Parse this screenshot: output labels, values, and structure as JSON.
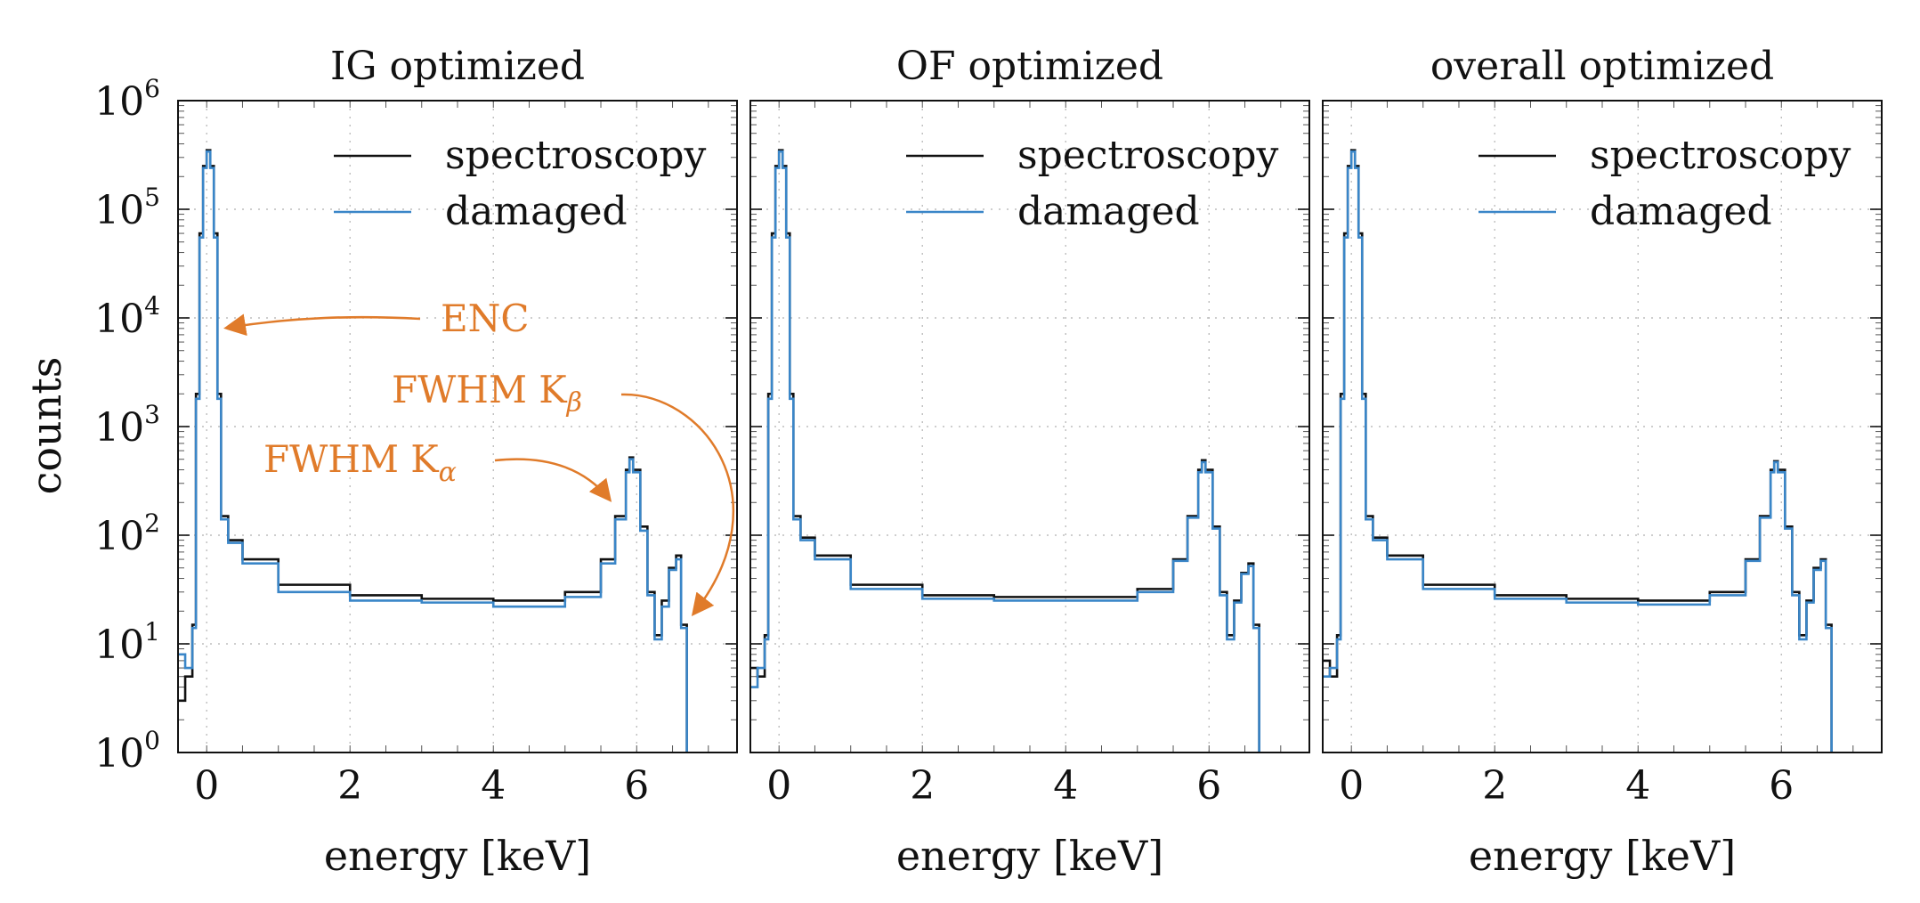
{
  "figure": {
    "ylabel": "counts"
  },
  "colors": {
    "spectroscopy": "#111111",
    "damaged": "#3a86c8",
    "annotation": "#e07b2a",
    "grid": "#bdbdbd"
  },
  "chart_data": [
    {
      "type": "line",
      "title": "IG optimized",
      "xlabel": "energy [keV]",
      "ylabel": "counts",
      "xlim": [
        -0.4,
        7.4
      ],
      "ylim": [
        1,
        1000000
      ],
      "yscale": "log",
      "grid": true,
      "legend": "top-right",
      "x_ticks": [
        "0",
        "2",
        "4",
        "6"
      ],
      "y_ticks": [
        "10^0",
        "10^1",
        "10^2",
        "10^3",
        "10^4",
        "10^5",
        "10^6"
      ],
      "series": [
        {
          "name": "spectroscopy",
          "x": [
            -0.4,
            -0.3,
            -0.2,
            -0.15,
            -0.1,
            -0.05,
            0,
            0.05,
            0.1,
            0.15,
            0.2,
            0.3,
            0.5,
            1,
            2,
            3,
            4,
            5,
            5.5,
            5.7,
            5.85,
            5.9,
            5.95,
            6.05,
            6.15,
            6.25,
            6.35,
            6.45,
            6.55,
            6.62,
            6.7
          ],
          "y": [
            3,
            5,
            15,
            2000,
            60000,
            250000,
            350000,
            250000,
            60000,
            2000,
            150,
            90,
            60,
            35,
            28,
            26,
            25,
            30,
            60,
            150,
            400,
            520,
            400,
            120,
            30,
            12,
            25,
            50,
            65,
            15,
            1
          ]
        },
        {
          "name": "damaged",
          "x": [
            -0.4,
            -0.3,
            -0.2,
            -0.15,
            -0.1,
            -0.05,
            0,
            0.05,
            0.1,
            0.15,
            0.2,
            0.3,
            0.5,
            1,
            2,
            3,
            4,
            5,
            5.5,
            5.7,
            5.85,
            5.9,
            5.95,
            6.05,
            6.15,
            6.25,
            6.35,
            6.45,
            6.55,
            6.62,
            6.7
          ],
          "y": [
            8,
            6,
            14,
            1800,
            55000,
            240000,
            340000,
            240000,
            55000,
            1800,
            140,
            85,
            55,
            30,
            25,
            24,
            22,
            27,
            55,
            140,
            380,
            500,
            380,
            110,
            28,
            11,
            22,
            48,
            60,
            14,
            1
          ]
        }
      ],
      "annotations": [
        {
          "text": "ENC",
          "target": "peak near 0 keV"
        },
        {
          "text": "FWHM K",
          "subscript": "β",
          "target": "Kβ peak near 6.5 keV"
        },
        {
          "text": "FWHM K",
          "subscript": "α",
          "target": "Kα peak near 5.9 keV"
        }
      ]
    },
    {
      "type": "line",
      "title": "OF optimized",
      "xlabel": "energy [keV]",
      "xlim": [
        -0.4,
        7.4
      ],
      "ylim": [
        1,
        1000000
      ],
      "yscale": "log",
      "grid": true,
      "legend": "top-right",
      "x_ticks": [
        "0",
        "2",
        "4",
        "6"
      ],
      "series": [
        {
          "name": "spectroscopy",
          "x": [
            -0.4,
            -0.3,
            -0.2,
            -0.15,
            -0.1,
            -0.05,
            0,
            0.05,
            0.1,
            0.15,
            0.2,
            0.3,
            0.5,
            1,
            2,
            3,
            4,
            5,
            5.5,
            5.7,
            5.85,
            5.9,
            5.95,
            6.05,
            6.15,
            6.25,
            6.35,
            6.45,
            6.55,
            6.62,
            6.7
          ],
          "y": [
            6,
            5,
            12,
            2000,
            60000,
            250000,
            350000,
            250000,
            60000,
            2000,
            150,
            95,
            65,
            35,
            28,
            27,
            27,
            32,
            60,
            150,
            400,
            490,
            400,
            120,
            30,
            12,
            25,
            45,
            55,
            15,
            1
          ]
        },
        {
          "name": "damaged",
          "x": [
            -0.4,
            -0.3,
            -0.2,
            -0.15,
            -0.1,
            -0.05,
            0,
            0.05,
            0.1,
            0.15,
            0.2,
            0.3,
            0.5,
            1,
            2,
            3,
            4,
            5,
            5.5,
            5.7,
            5.85,
            5.9,
            5.95,
            6.05,
            6.15,
            6.25,
            6.35,
            6.45,
            6.55,
            6.62,
            6.7
          ],
          "y": [
            4,
            6,
            11,
            1800,
            55000,
            240000,
            340000,
            240000,
            55000,
            1800,
            140,
            90,
            60,
            32,
            26,
            25,
            25,
            30,
            58,
            145,
            380,
            470,
            380,
            115,
            28,
            11,
            24,
            44,
            52,
            14,
            1
          ]
        }
      ]
    },
    {
      "type": "line",
      "title": "overall optimized",
      "xlabel": "energy [keV]",
      "xlim": [
        -0.4,
        7.4
      ],
      "ylim": [
        1,
        1000000
      ],
      "yscale": "log",
      "grid": true,
      "legend": "top-right",
      "x_ticks": [
        "0",
        "2",
        "4",
        "6"
      ],
      "series": [
        {
          "name": "spectroscopy",
          "x": [
            -0.4,
            -0.3,
            -0.2,
            -0.15,
            -0.1,
            -0.05,
            0,
            0.05,
            0.1,
            0.15,
            0.2,
            0.3,
            0.5,
            1,
            2,
            3,
            4,
            5,
            5.5,
            5.7,
            5.85,
            5.9,
            5.95,
            6.05,
            6.15,
            6.25,
            6.35,
            6.45,
            6.55,
            6.62,
            6.7
          ],
          "y": [
            7,
            5,
            12,
            2000,
            60000,
            250000,
            350000,
            250000,
            60000,
            2000,
            150,
            95,
            65,
            35,
            28,
            26,
            25,
            30,
            60,
            150,
            400,
            480,
            400,
            120,
            30,
            12,
            25,
            50,
            60,
            15,
            1
          ]
        },
        {
          "name": "damaged",
          "x": [
            -0.4,
            -0.3,
            -0.2,
            -0.15,
            -0.1,
            -0.05,
            0,
            0.05,
            0.1,
            0.15,
            0.2,
            0.3,
            0.5,
            1,
            2,
            3,
            4,
            5,
            5.5,
            5.7,
            5.85,
            5.9,
            5.95,
            6.05,
            6.15,
            6.25,
            6.35,
            6.45,
            6.55,
            6.62,
            6.7
          ],
          "y": [
            5,
            6,
            11,
            1800,
            55000,
            240000,
            340000,
            240000,
            55000,
            1800,
            140,
            90,
            60,
            32,
            26,
            24,
            23,
            28,
            58,
            145,
            380,
            470,
            380,
            115,
            28,
            11,
            24,
            48,
            58,
            14,
            1
          ]
        }
      ]
    }
  ]
}
